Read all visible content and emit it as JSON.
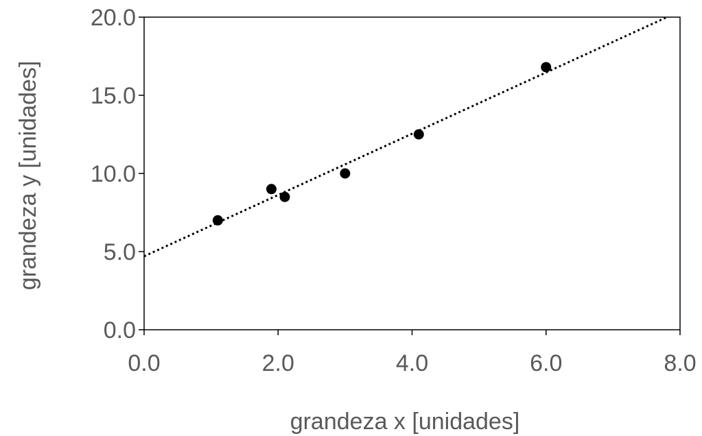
{
  "chart_data": {
    "type": "scatter",
    "title": "",
    "xlabel": "grandeza x [unidades]",
    "ylabel": "grandeza y [unidades]",
    "xlim": [
      0,
      8
    ],
    "ylim": [
      0,
      20
    ],
    "x_ticks": [
      0,
      2,
      4,
      6,
      8
    ],
    "y_ticks": [
      0,
      5,
      10,
      15,
      20
    ],
    "x_tick_labels": [
      "0.0",
      "2.0",
      "4.0",
      "6.0",
      "8.0"
    ],
    "y_tick_labels": [
      "0.0",
      "5.0",
      "10.0",
      "15.0",
      "20.0"
    ],
    "grid": false,
    "legend": "none",
    "points": [
      {
        "x": 1.1,
        "y": 7.0
      },
      {
        "x": 1.9,
        "y": 9.0
      },
      {
        "x": 2.1,
        "y": 8.5
      },
      {
        "x": 3.0,
        "y": 10.0
      },
      {
        "x": 4.1,
        "y": 12.5
      },
      {
        "x": 6.0,
        "y": 16.8
      }
    ],
    "trendline": {
      "style": "dotted",
      "color": "#000000",
      "slope": 1.96,
      "intercept": 4.7
    },
    "marker_color": "#000000"
  }
}
